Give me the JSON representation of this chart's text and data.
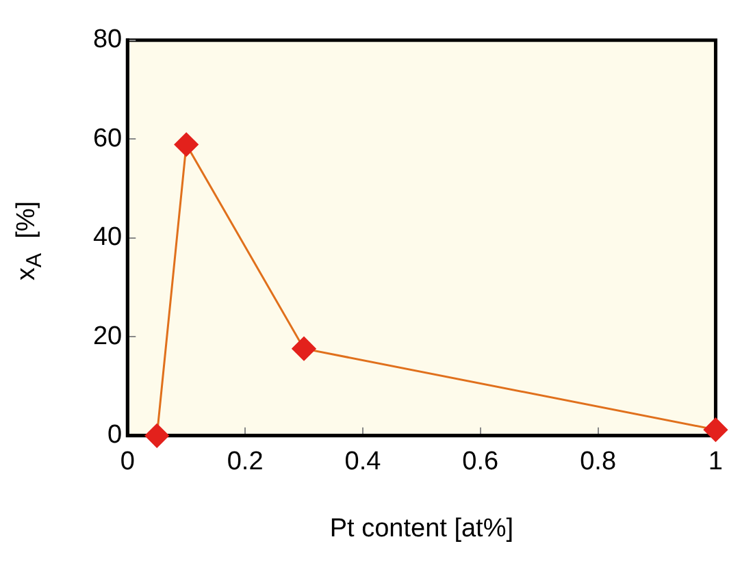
{
  "chart_data": {
    "type": "line",
    "xlabel": "Pt content [at%]",
    "ylabel": "x$_{A}$  [%]",
    "x": [
      0.05,
      0.1,
      0.3,
      1
    ],
    "series": [
      {
        "color": "#e3211c",
        "values": [
          0,
          58.9,
          17.6,
          1.2
        ]
      }
    ],
    "xlim": [
      0,
      1
    ],
    "xticks": [
      0,
      0.2,
      0.4,
      0.6,
      0.8,
      1
    ],
    "ylim": [
      0,
      80
    ],
    "yticks": [
      0,
      20,
      40,
      60,
      80
    ],
    "grid": false,
    "legend": false,
    "marker": "diamond",
    "line_style": "solid"
  }
}
